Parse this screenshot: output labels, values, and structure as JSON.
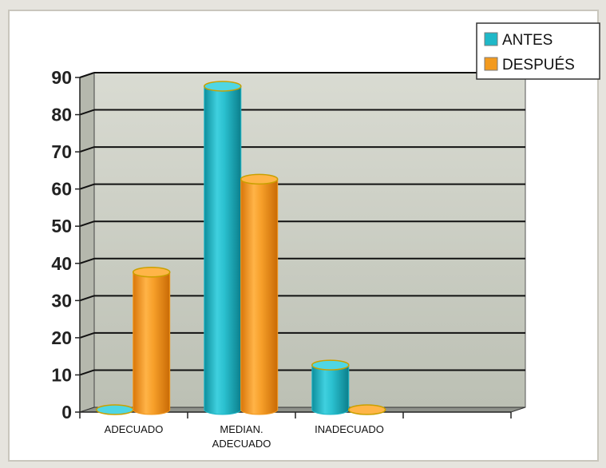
{
  "chart_data": {
    "type": "bar",
    "style": "3d-cylinder",
    "categories": [
      [
        "ADECUADO"
      ],
      [
        "MEDIAN.",
        "ADECUADO"
      ],
      [
        "INADECUADO"
      ],
      [
        ""
      ]
    ],
    "series": [
      {
        "name": "ANTES",
        "color": "#1fb8c8",
        "values": [
          0,
          87,
          12,
          null
        ]
      },
      {
        "name": "DESPUÉS",
        "color": "#f39a1e",
        "values": [
          37,
          62,
          0,
          null
        ]
      }
    ],
    "yticks": [
      0,
      10,
      20,
      30,
      40,
      50,
      60,
      70,
      80,
      90
    ],
    "ylim": [
      0,
      90
    ],
    "grid": true,
    "legend": "top-right",
    "title": "",
    "xlabel": "",
    "ylabel": ""
  }
}
